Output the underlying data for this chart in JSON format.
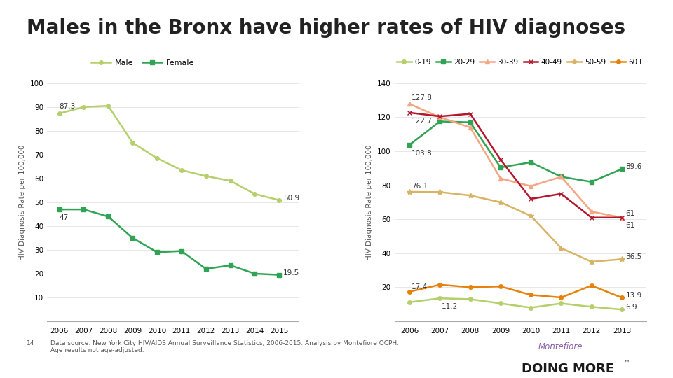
{
  "title": "Males in the Bronx have higher rates of HIV diagnoses",
  "title_fontsize": 20,
  "left_chart": {
    "years": [
      2006,
      2007,
      2008,
      2009,
      2010,
      2011,
      2012,
      2013,
      2014,
      2015
    ],
    "male": [
      87.3,
      90.0,
      90.5,
      75.0,
      68.5,
      63.5,
      61.0,
      59.0,
      53.5,
      50.9
    ],
    "female": [
      47.0,
      47.0,
      44.0,
      35.0,
      29.0,
      29.5,
      22.0,
      23.5,
      20.0,
      19.5
    ],
    "male_color": "#b5cf6b",
    "female_color": "#31a354",
    "ylabel": "HIV Diagnosis Rate per 100,000",
    "ylim": [
      0,
      100
    ],
    "yticks": [
      0,
      10,
      20,
      30,
      40,
      50,
      60,
      70,
      80,
      90,
      100
    ],
    "anno_male_start": "87.3",
    "anno_male_end": "50.9",
    "anno_female_start": "47",
    "anno_female_end": "19.5"
  },
  "right_chart": {
    "years": [
      2006,
      2007,
      2008,
      2009,
      2010,
      2011,
      2012,
      2013
    ],
    "age_0_19": [
      11.2,
      13.5,
      13.0,
      10.5,
      8.0,
      10.5,
      8.5,
      6.9
    ],
    "age_20_29": [
      103.8,
      117.5,
      117.0,
      90.5,
      93.5,
      85.0,
      82.0,
      89.6
    ],
    "age_30_39": [
      127.8,
      120.0,
      114.0,
      84.0,
      79.5,
      85.0,
      64.5,
      61.0
    ],
    "age_40_49": [
      122.7,
      120.5,
      122.0,
      95.0,
      72.0,
      75.0,
      61.0,
      61.0
    ],
    "age_50_59": [
      76.1,
      76.0,
      74.0,
      70.0,
      62.0,
      43.0,
      35.0,
      36.5
    ],
    "age_60plus": [
      17.4,
      21.5,
      20.0,
      20.5,
      15.5,
      14.0,
      21.0,
      13.9
    ],
    "color_0_19": "#b5cf6b",
    "color_20_29": "#31a354",
    "color_30_39": "#f4a582",
    "color_40_49": "#b2182b",
    "color_50_59": "#d8b365",
    "color_60plus": "#e6820a",
    "ylabel": "HIV Diagnosis Rate per 100,000",
    "ylim": [
      0,
      140
    ],
    "yticks": [
      0,
      20,
      40,
      60,
      80,
      100,
      120,
      140
    ],
    "anno_0_19_start": "11.2",
    "anno_0_19_end": "6.9",
    "anno_20_29_start": "103.8",
    "anno_20_29_end": "89.6",
    "anno_30_39_start": "127.8",
    "anno_30_39_end": "61",
    "anno_40_49_start": "122.7",
    "anno_40_49_end": "61",
    "anno_50_59_start": "76.1",
    "anno_50_59_end": "36.5",
    "anno_60plus_start": "17.4",
    "anno_60plus_end": "13.9"
  },
  "footnote": "Data source: New York City HIV/AIDS Annual Surveillance Statistics, 2006-2015. Analysis by Montefiore OCPH.\nAge results not age-adjusted.",
  "footnote_num": "14",
  "background_color": "#ffffff"
}
